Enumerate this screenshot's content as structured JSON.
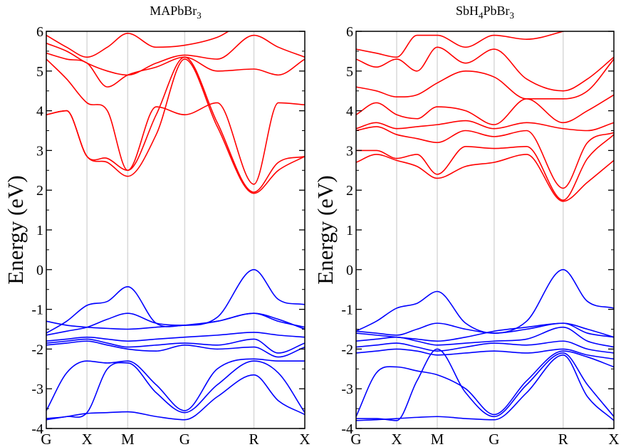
{
  "chart_data": [
    {
      "type": "line",
      "title": "MAPbBr",
      "title_sub": "3",
      "ylabel": "Energy (eV)",
      "ylim": [
        -4,
        6
      ],
      "yticks": [
        -4,
        -3,
        -2,
        -1,
        0,
        1,
        2,
        3,
        4,
        5,
        6
      ],
      "xlim": [
        0,
        6.35
      ],
      "kpoints": [
        {
          "label": "G",
          "x": 0
        },
        {
          "label": "X",
          "x": 1.0
        },
        {
          "label": "M",
          "x": 2.0
        },
        {
          "label": "G",
          "x": 3.4
        },
        {
          "label": "R",
          "x": 5.1
        },
        {
          "label": "X",
          "x": 6.35
        }
      ],
      "grid_lines_at_kpoints": true,
      "conduction_color": "#ff0000",
      "valence_color": "#0000ff",
      "conduction_bands": [
        {
          "x": [
            0,
            0.5,
            1.0,
            1.5,
            2.0,
            2.7,
            3.4,
            4.2,
            5.1,
            5.7,
            6.35
          ],
          "y": [
            3.9,
            4.0,
            2.85,
            2.7,
            2.35,
            3.4,
            5.3,
            3.6,
            1.92,
            2.5,
            2.85
          ]
        },
        {
          "x": [
            0,
            0.5,
            1.0,
            1.5,
            2.0,
            2.7,
            3.4,
            4.2,
            5.1,
            5.7,
            6.35
          ],
          "y": [
            3.9,
            4.0,
            2.85,
            2.8,
            2.5,
            3.9,
            5.35,
            3.7,
            1.95,
            2.7,
            2.85
          ]
        },
        {
          "x": [
            0,
            0.5,
            1.0,
            1.5,
            2.0,
            2.7,
            3.4,
            4.2,
            5.1,
            5.7,
            6.35
          ],
          "y": [
            5.3,
            4.8,
            4.2,
            4.0,
            2.5,
            4.1,
            3.9,
            4.2,
            2.15,
            4.2,
            4.15
          ]
        },
        {
          "x": [
            0,
            0.5,
            1.0,
            1.5,
            2.0,
            2.7,
            3.4,
            4.2,
            5.1,
            5.7,
            6.35
          ],
          "y": [
            5.45,
            5.3,
            5.2,
            4.6,
            4.9,
            5.1,
            5.35,
            5.0,
            5.05,
            4.9,
            5.3
          ]
        },
        {
          "x": [
            0,
            0.5,
            1.0,
            1.5,
            2.0,
            2.7,
            3.4,
            4.2,
            5.1,
            5.7,
            6.35
          ],
          "y": [
            5.7,
            5.5,
            5.2,
            5.0,
            4.9,
            5.2,
            5.4,
            5.3,
            5.9,
            5.6,
            5.35
          ]
        },
        {
          "x": [
            0,
            0.5,
            1.0,
            1.5,
            2.0,
            2.7,
            3.4,
            4.2,
            5.1,
            5.7,
            6.35
          ],
          "y": [
            5.9,
            5.6,
            5.35,
            5.6,
            5.95,
            5.6,
            5.65,
            5.85,
            6.3,
            6.3,
            6.3
          ]
        }
      ],
      "valence_bands": [
        {
          "x": [
            0,
            0.5,
            1.0,
            1.5,
            2.0,
            2.7,
            3.4,
            4.2,
            5.1,
            5.7,
            6.35
          ],
          "y": [
            -1.6,
            -1.3,
            -0.9,
            -0.8,
            -0.43,
            -1.35,
            -1.4,
            -1.2,
            0.0,
            -0.75,
            -0.88
          ]
        },
        {
          "x": [
            0,
            0.5,
            1.0,
            1.5,
            2.0,
            2.7,
            3.4,
            4.2,
            5.1,
            5.7,
            6.35
          ],
          "y": [
            -1.65,
            -1.55,
            -1.45,
            -1.25,
            -1.1,
            -1.35,
            -1.4,
            -1.3,
            -1.1,
            -1.25,
            -1.5
          ]
        },
        {
          "x": [
            0,
            0.5,
            1.0,
            1.5,
            2.0,
            2.7,
            3.4,
            4.2,
            5.1,
            5.7,
            6.35
          ],
          "y": [
            -1.3,
            -1.4,
            -1.45,
            -1.48,
            -1.5,
            -1.45,
            -1.4,
            -1.3,
            -1.1,
            -1.3,
            -1.45
          ]
        },
        {
          "x": [
            0,
            0.5,
            1.0,
            1.5,
            2.0,
            2.7,
            3.4,
            4.2,
            5.1,
            5.7,
            6.35
          ],
          "y": [
            -1.8,
            -1.75,
            -1.7,
            -1.75,
            -1.8,
            -1.75,
            -1.7,
            -1.65,
            -1.58,
            -1.65,
            -1.7
          ]
        },
        {
          "x": [
            0,
            0.5,
            1.0,
            1.5,
            2.0,
            2.7,
            3.4,
            4.2,
            5.1,
            5.7,
            6.35
          ],
          "y": [
            -1.85,
            -1.8,
            -1.75,
            -1.85,
            -1.95,
            -1.9,
            -1.85,
            -1.9,
            -1.75,
            -2.1,
            -1.85
          ]
        },
        {
          "x": [
            0,
            0.5,
            1.0,
            1.5,
            2.0,
            2.7,
            3.4,
            4.2,
            5.1,
            5.7,
            6.35
          ],
          "y": [
            -1.9,
            -1.85,
            -1.8,
            -1.9,
            -2.0,
            -2.05,
            -1.9,
            -2.0,
            -1.95,
            -2.2,
            -1.95
          ]
        },
        {
          "x": [
            0,
            0.5,
            1.0,
            1.5,
            2.0,
            2.7,
            3.4,
            4.2,
            5.1,
            5.7,
            6.35
          ],
          "y": [
            -3.55,
            -2.6,
            -2.3,
            -2.35,
            -2.3,
            -2.9,
            -3.55,
            -2.5,
            -2.25,
            -2.3,
            -2.3
          ]
        },
        {
          "x": [
            0,
            0.5,
            1.0,
            1.5,
            2.0,
            2.7,
            3.4,
            4.2,
            5.1,
            5.7,
            6.35
          ],
          "y": [
            -3.75,
            -3.7,
            -3.6,
            -2.5,
            -2.35,
            -3.1,
            -3.6,
            -2.9,
            -2.3,
            -2.6,
            -3.6
          ]
        },
        {
          "x": [
            0,
            0.5,
            1.0,
            1.5,
            2.0,
            2.7,
            3.4,
            4.2,
            5.1,
            5.7,
            6.35
          ],
          "y": [
            -3.78,
            -3.7,
            -3.62,
            -3.6,
            -3.58,
            -3.7,
            -3.78,
            -3.2,
            -2.65,
            -3.3,
            -3.65
          ]
        }
      ]
    },
    {
      "type": "line",
      "title": "SbH",
      "title_sub": "4",
      "title_mid": "PbBr",
      "title_sub2": "3",
      "ylabel": "Energy (eV)",
      "ylim": [
        -4,
        6
      ],
      "yticks": [
        -4,
        -3,
        -2,
        -1,
        0,
        1,
        2,
        3,
        4,
        5,
        6
      ],
      "xlim": [
        0,
        6.35
      ],
      "kpoints": [
        {
          "label": "G",
          "x": 0
        },
        {
          "label": "X",
          "x": 1.0
        },
        {
          "label": "M",
          "x": 2.0
        },
        {
          "label": "G",
          "x": 3.4
        },
        {
          "label": "R",
          "x": 5.1
        },
        {
          "label": "X",
          "x": 6.35
        }
      ],
      "grid_lines_at_kpoints": true,
      "conduction_color": "#ff0000",
      "valence_color": "#0000ff",
      "conduction_bands": [
        {
          "x": [
            0,
            0.5,
            1.0,
            1.5,
            2.0,
            2.7,
            3.4,
            4.2,
            5.1,
            5.7,
            6.35
          ],
          "y": [
            2.7,
            2.9,
            2.75,
            2.6,
            2.3,
            2.6,
            2.7,
            2.9,
            1.72,
            2.2,
            2.75
          ]
        },
        {
          "x": [
            0,
            0.5,
            1.0,
            1.5,
            2.0,
            2.7,
            3.4,
            4.2,
            5.1,
            5.7,
            6.35
          ],
          "y": [
            3.0,
            3.0,
            2.8,
            2.9,
            2.4,
            3.1,
            3.05,
            3.1,
            1.75,
            2.8,
            3.4
          ]
        },
        {
          "x": [
            0,
            0.5,
            1.0,
            1.5,
            2.0,
            2.7,
            3.4,
            4.2,
            5.1,
            5.7,
            6.35
          ],
          "y": [
            3.5,
            3.6,
            3.4,
            3.3,
            3.2,
            3.5,
            3.35,
            3.5,
            2.05,
            3.2,
            3.45
          ]
        },
        {
          "x": [
            0,
            0.5,
            1.0,
            1.5,
            2.0,
            2.7,
            3.4,
            4.2,
            5.1,
            5.7,
            6.35
          ],
          "y": [
            3.55,
            3.7,
            3.55,
            3.6,
            3.65,
            3.75,
            3.55,
            3.7,
            3.55,
            3.5,
            3.7
          ]
        },
        {
          "x": [
            0,
            0.5,
            1.0,
            1.5,
            2.0,
            2.7,
            3.4,
            4.2,
            5.1,
            5.7,
            6.35
          ],
          "y": [
            3.9,
            4.2,
            3.9,
            3.8,
            4.1,
            4.0,
            3.65,
            4.3,
            3.7,
            4.0,
            4.4
          ]
        },
        {
          "x": [
            0,
            0.5,
            1.0,
            1.5,
            2.0,
            2.7,
            3.4,
            4.2,
            5.1,
            5.7,
            6.35
          ],
          "y": [
            4.6,
            4.5,
            4.35,
            4.4,
            4.7,
            5.0,
            4.85,
            4.3,
            4.3,
            4.5,
            5.3
          ]
        },
        {
          "x": [
            0,
            0.5,
            1.0,
            1.5,
            2.0,
            2.7,
            3.4,
            4.2,
            5.1,
            5.7,
            6.35
          ],
          "y": [
            5.3,
            5.1,
            5.3,
            5.0,
            5.6,
            5.2,
            5.55,
            4.8,
            4.5,
            4.8,
            5.35
          ]
        },
        {
          "x": [
            0,
            0.5,
            1.0,
            1.5,
            2.0,
            2.7,
            3.4,
            4.2,
            5.1,
            5.7,
            6.35
          ],
          "y": [
            5.55,
            5.45,
            5.35,
            5.9,
            5.9,
            5.6,
            5.9,
            5.8,
            6.0,
            6.2,
            6.3
          ]
        }
      ],
      "valence_bands": [
        {
          "x": [
            0,
            0.5,
            1.0,
            1.5,
            2.0,
            2.7,
            3.4,
            4.2,
            5.1,
            5.7,
            6.35
          ],
          "y": [
            -1.55,
            -1.3,
            -0.97,
            -0.85,
            -0.55,
            -1.35,
            -1.6,
            -1.3,
            0.0,
            -0.8,
            -0.97
          ]
        },
        {
          "x": [
            0,
            0.5,
            1.0,
            1.5,
            2.0,
            2.7,
            3.4,
            4.2,
            5.1,
            5.7,
            6.35
          ],
          "y": [
            -1.55,
            -1.6,
            -1.65,
            -1.5,
            -1.35,
            -1.5,
            -1.6,
            -1.5,
            -1.35,
            -1.5,
            -1.7
          ]
        },
        {
          "x": [
            0,
            0.5,
            1.0,
            1.5,
            2.0,
            2.7,
            3.4,
            4.2,
            5.1,
            5.7,
            6.35
          ],
          "y": [
            -1.6,
            -1.65,
            -1.7,
            -1.75,
            -1.8,
            -1.7,
            -1.55,
            -1.45,
            -1.35,
            -1.6,
            -1.7
          ]
        },
        {
          "x": [
            0,
            0.5,
            1.0,
            1.5,
            2.0,
            2.7,
            3.4,
            4.2,
            5.1,
            5.7,
            6.35
          ],
          "y": [
            -1.8,
            -1.75,
            -1.7,
            -1.8,
            -1.9,
            -1.85,
            -1.8,
            -1.75,
            -1.45,
            -1.8,
            -1.95
          ]
        },
        {
          "x": [
            0,
            0.5,
            1.0,
            1.5,
            2.0,
            2.7,
            3.4,
            4.2,
            5.1,
            5.7,
            6.35
          ],
          "y": [
            -1.95,
            -1.9,
            -1.85,
            -1.95,
            -2.05,
            -1.95,
            -1.85,
            -1.9,
            -1.8,
            -2.0,
            -2.1
          ]
        },
        {
          "x": [
            0,
            0.5,
            1.0,
            1.5,
            2.0,
            2.7,
            3.4,
            4.2,
            5.1,
            5.7,
            6.35
          ],
          "y": [
            -2.1,
            -2.05,
            -2.0,
            -2.05,
            -2.15,
            -2.1,
            -2.05,
            -2.1,
            -2.0,
            -2.15,
            -2.25
          ]
        },
        {
          "x": [
            0,
            0.5,
            1.0,
            1.5,
            2.0,
            2.7,
            3.4,
            4.2,
            5.1,
            5.7,
            6.35
          ],
          "y": [
            -3.7,
            -2.6,
            -2.45,
            -2.55,
            -2.65,
            -3.0,
            -3.65,
            -2.8,
            -2.05,
            -2.2,
            -2.45
          ]
        },
        {
          "x": [
            0,
            0.5,
            1.0,
            1.5,
            2.0,
            2.7,
            3.4,
            4.2,
            5.1,
            5.7,
            6.35
          ],
          "y": [
            -3.75,
            -3.75,
            -3.8,
            -2.8,
            -2.0,
            -3.1,
            -3.7,
            -2.9,
            -2.1,
            -2.9,
            -3.7
          ]
        },
        {
          "x": [
            0,
            0.5,
            1.0,
            1.5,
            2.0,
            2.7,
            3.4,
            4.2,
            5.1,
            5.7,
            6.35
          ],
          "y": [
            -3.8,
            -3.78,
            -3.75,
            -3.72,
            -3.7,
            -3.75,
            -3.78,
            -3.1,
            -2.15,
            -3.2,
            -3.8
          ]
        }
      ]
    }
  ]
}
